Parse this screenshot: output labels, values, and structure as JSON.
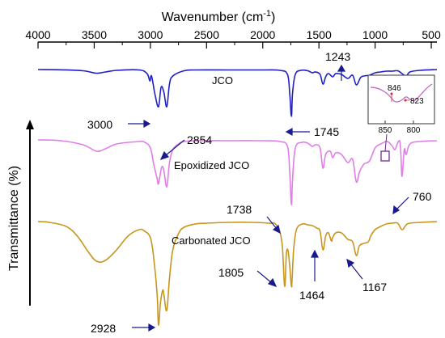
{
  "chart_data": {
    "type": "line",
    "xlabel_main": "Wavenumber (cm",
    "xlabel_sup": "-1",
    "xlabel_close": ")",
    "ylabel": "Transmittance (%)",
    "xlim": [
      4000,
      450
    ],
    "x_reversed": true,
    "x_ticks": [
      "4000",
      "3500",
      "3000",
      "2500",
      "2000",
      "1500",
      "1000",
      "500"
    ],
    "x_tick_values": [
      4000,
      3500,
      3000,
      2500,
      2000,
      1500,
      1000,
      500
    ],
    "y_ticks_shown": false,
    "grid": false,
    "series": [
      {
        "name": "JCO",
        "color": "#1f1fc8",
        "points": [
          [
            4000,
            0
          ],
          [
            3800,
            0.3
          ],
          [
            3600,
            1.5
          ],
          [
            3480,
            4.5
          ],
          [
            3400,
            3
          ],
          [
            3300,
            1
          ],
          [
            3100,
            0.5
          ],
          [
            3030,
            5
          ],
          [
            3005,
            14
          ],
          [
            2990,
            8
          ],
          [
            2960,
            30
          ],
          [
            2928,
            46
          ],
          [
            2905,
            22
          ],
          [
            2880,
            28
          ],
          [
            2854,
            46
          ],
          [
            2830,
            18
          ],
          [
            2800,
            8
          ],
          [
            2700,
            1.5
          ],
          [
            2600,
            0.5
          ],
          [
            2300,
            0.5
          ],
          [
            2000,
            0.5
          ],
          [
            1850,
            1
          ],
          [
            1780,
            6
          ],
          [
            1760,
            30
          ],
          [
            1745,
            58
          ],
          [
            1735,
            30
          ],
          [
            1710,
            6
          ],
          [
            1660,
            1
          ],
          [
            1600,
            1.5
          ],
          [
            1560,
            4
          ],
          [
            1530,
            3
          ],
          [
            1490,
            6
          ],
          [
            1464,
            18
          ],
          [
            1440,
            9
          ],
          [
            1415,
            5
          ],
          [
            1378,
            9
          ],
          [
            1350,
            5
          ],
          [
            1300,
            6
          ],
          [
            1243,
            11
          ],
          [
            1200,
            7
          ],
          [
            1167,
            19
          ],
          [
            1130,
            10
          ],
          [
            1100,
            8
          ],
          [
            1050,
            7
          ],
          [
            1000,
            4
          ],
          [
            950,
            3
          ],
          [
            900,
            2
          ],
          [
            850,
            2
          ],
          [
            800,
            1.5
          ],
          [
            760,
            5
          ],
          [
            723,
            8
          ],
          [
            690,
            3
          ],
          [
            600,
            1
          ],
          [
            450,
            0
          ]
        ]
      },
      {
        "name": "Epoxidized JCO",
        "color": "#e07ee8",
        "points": [
          [
            4000,
            0
          ],
          [
            3800,
            1
          ],
          [
            3600,
            6
          ],
          [
            3480,
            14
          ],
          [
            3400,
            11
          ],
          [
            3300,
            5
          ],
          [
            3100,
            2
          ],
          [
            3050,
            3
          ],
          [
            3000,
            10
          ],
          [
            2970,
            30
          ],
          [
            2940,
            48
          ],
          [
            2928,
            54
          ],
          [
            2900,
            34
          ],
          [
            2880,
            38
          ],
          [
            2854,
            58
          ],
          [
            2830,
            28
          ],
          [
            2800,
            12
          ],
          [
            2750,
            5
          ],
          [
            2700,
            2
          ],
          [
            2600,
            1
          ],
          [
            2300,
            1
          ],
          [
            2000,
            1
          ],
          [
            1850,
            2
          ],
          [
            1780,
            8
          ],
          [
            1760,
            40
          ],
          [
            1745,
            80
          ],
          [
            1735,
            50
          ],
          [
            1710,
            10
          ],
          [
            1650,
            3
          ],
          [
            1600,
            4
          ],
          [
            1560,
            8
          ],
          [
            1530,
            6
          ],
          [
            1490,
            10
          ],
          [
            1464,
            35
          ],
          [
            1440,
            18
          ],
          [
            1400,
            14
          ],
          [
            1378,
            22
          ],
          [
            1350,
            16
          ],
          [
            1300,
            18
          ],
          [
            1243,
            28
          ],
          [
            1200,
            24
          ],
          [
            1167,
            52
          ],
          [
            1140,
            40
          ],
          [
            1100,
            30
          ],
          [
            1050,
            26
          ],
          [
            1000,
            10
          ],
          [
            950,
            5
          ],
          [
            900,
            2
          ],
          [
            870,
            4
          ],
          [
            846,
            8
          ],
          [
            823,
            12
          ],
          [
            800,
            4
          ],
          [
            780,
            2
          ],
          [
            770,
            20
          ],
          [
            760,
            45
          ],
          [
            740,
            12
          ],
          [
            723,
            18
          ],
          [
            690,
            5
          ],
          [
            600,
            2
          ],
          [
            450,
            1
          ]
        ]
      },
      {
        "name": "Carbonated JCO",
        "color": "#c8961e",
        "points": [
          [
            4000,
            0
          ],
          [
            3900,
            1
          ],
          [
            3750,
            6
          ],
          [
            3650,
            18
          ],
          [
            3550,
            38
          ],
          [
            3480,
            49
          ],
          [
            3400,
            48
          ],
          [
            3300,
            35
          ],
          [
            3200,
            18
          ],
          [
            3100,
            10
          ],
          [
            3050,
            12
          ],
          [
            3000,
            20
          ],
          [
            2970,
            45
          ],
          [
            2940,
            90
          ],
          [
            2928,
            128
          ],
          [
            2910,
            100
          ],
          [
            2890,
            85
          ],
          [
            2880,
            90
          ],
          [
            2854,
            110
          ],
          [
            2830,
            70
          ],
          [
            2800,
            35
          ],
          [
            2750,
            15
          ],
          [
            2700,
            7
          ],
          [
            2600,
            3
          ],
          [
            2500,
            2
          ],
          [
            2300,
            1
          ],
          [
            2100,
            1
          ],
          [
            1950,
            2
          ],
          [
            1880,
            4
          ],
          [
            1830,
            25
          ],
          [
            1805,
            80
          ],
          [
            1790,
            40
          ],
          [
            1775,
            36
          ],
          [
            1760,
            55
          ],
          [
            1745,
            80
          ],
          [
            1738,
            70
          ],
          [
            1725,
            35
          ],
          [
            1700,
            10
          ],
          [
            1650,
            3
          ],
          [
            1600,
            4
          ],
          [
            1560,
            5
          ],
          [
            1520,
            8
          ],
          [
            1490,
            12
          ],
          [
            1464,
            35
          ],
          [
            1440,
            18
          ],
          [
            1415,
            14
          ],
          [
            1390,
            24
          ],
          [
            1378,
            20
          ],
          [
            1350,
            14
          ],
          [
            1300,
            14
          ],
          [
            1243,
            22
          ],
          [
            1200,
            25
          ],
          [
            1167,
            42
          ],
          [
            1140,
            30
          ],
          [
            1100,
            27
          ],
          [
            1060,
            25
          ],
          [
            1040,
            18
          ],
          [
            1000,
            10
          ],
          [
            950,
            6
          ],
          [
            900,
            3
          ],
          [
            850,
            2
          ],
          [
            800,
            2
          ],
          [
            760,
            10
          ],
          [
            723,
            4
          ],
          [
            690,
            2
          ],
          [
            600,
            1
          ],
          [
            450,
            0
          ]
        ]
      }
    ],
    "annotations": [
      "3000",
      "2854",
      "1745",
      "1243",
      "1738",
      "760",
      "1805",
      "1464",
      "1167",
      "2928"
    ],
    "inset": {
      "ticks": [
        "850",
        "800"
      ],
      "labels": [
        "846",
        "823"
      ]
    }
  }
}
